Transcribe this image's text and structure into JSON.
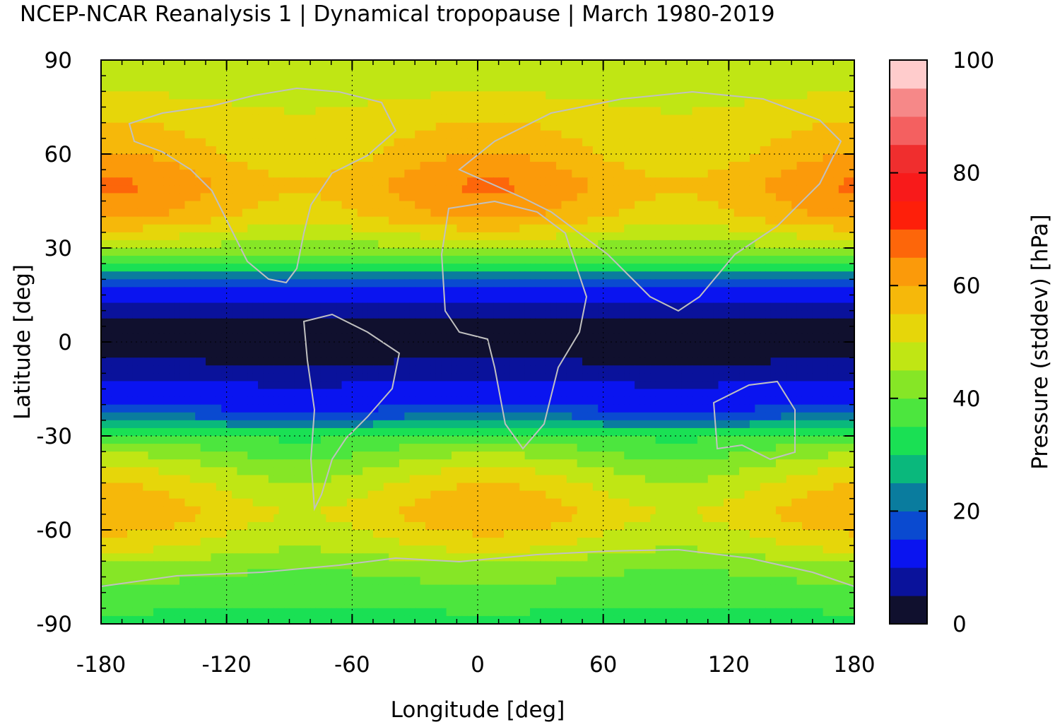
{
  "chart_data": {
    "type": "heatmap",
    "title": "NCEP-NCAR Reanalysis 1 | Dynamical tropopause | March 1980-2019",
    "xlabel": "Longitude [deg]",
    "ylabel": "Latitude [deg]",
    "xlim": [
      -180,
      180
    ],
    "ylim": [
      -90,
      90
    ],
    "xticks": [
      "-180",
      "-120",
      "-60",
      "0",
      "60",
      "120",
      "180"
    ],
    "yticks": [
      "90",
      "60",
      "30",
      "0",
      "-30",
      "-60",
      "-90"
    ],
    "grid": true,
    "colorbar": {
      "label": "Pressure (stddev) [hPa]",
      "range": [
        0,
        100
      ],
      "ticks": [
        "0",
        "20",
        "40",
        "60",
        "80",
        "100"
      ],
      "colors": [
        "#10102e",
        "#0a129b",
        "#0a14f0",
        "#0a4ad0",
        "#0a7c9e",
        "#0ab87c",
        "#1ae054",
        "#4ce63e",
        "#86e626",
        "#c0e614",
        "#e6d60a",
        "#f6b80a",
        "#fb9a0a",
        "#fd660a",
        "#fe1f0a",
        "#f81a1a",
        "#f02e2e",
        "#f46060",
        "#f68888",
        "#ffcccc"
      ]
    },
    "zonal_profile": {
      "lat": [
        90,
        80,
        70,
        60,
        50,
        40,
        30,
        25,
        20,
        15,
        10,
        5,
        0,
        -5,
        -10,
        -15,
        -20,
        -25,
        -30,
        -35,
        -40,
        -45,
        -50,
        -55,
        -60,
        -65,
        -70,
        -75,
        -80,
        -85,
        -90
      ],
      "value": [
        46,
        49,
        53,
        56,
        61,
        57,
        44,
        36,
        20,
        12,
        6,
        3,
        2,
        4,
        8,
        11,
        13,
        22,
        36,
        41,
        46,
        50,
        53,
        55,
        52,
        49,
        44,
        40,
        38,
        35,
        34
      ]
    }
  }
}
